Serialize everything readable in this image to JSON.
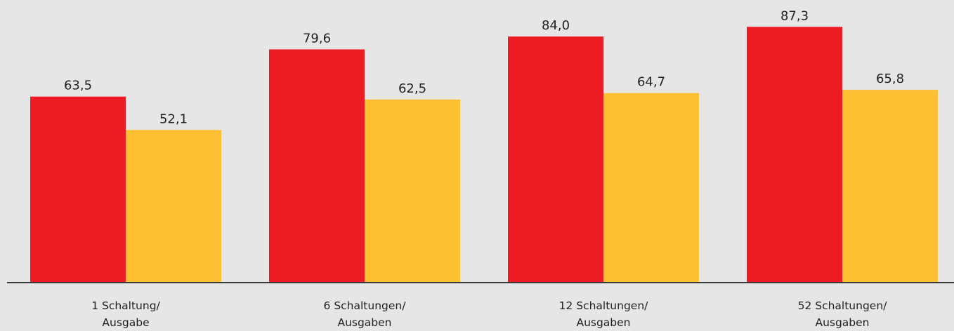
{
  "chart_data": {
    "type": "bar",
    "categories": [
      "1 Schaltung/\nAusgabe",
      "6 Schaltungen/\nAusgaben",
      "12 Schaltungen/\nAusgaben",
      "52 Schaltungen/\nAusgaben"
    ],
    "series": [
      {
        "color": "#ed1c24",
        "values": [
          63.5,
          79.6,
          84.0,
          87.3
        ],
        "value_labels": [
          "63,5",
          "79,6",
          "84,0",
          "87,3"
        ]
      },
      {
        "color": "#fdc032",
        "values": [
          52.1,
          62.5,
          64.7,
          65.8
        ],
        "value_labels": [
          "52,1",
          "62,5",
          "64,7",
          "65,8"
        ]
      }
    ],
    "ylim": [
      0,
      90
    ]
  }
}
